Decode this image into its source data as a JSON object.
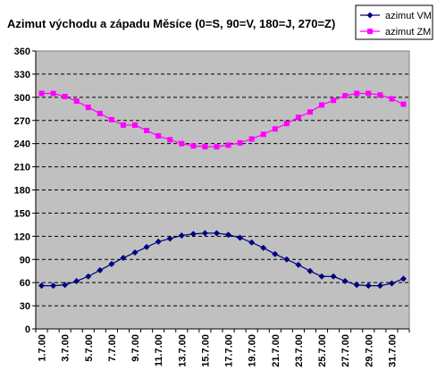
{
  "chart_data": {
    "type": "line",
    "title": "Azimut východu a západu Měsíce (0=S, 90=V, 180=J, 270=Z)",
    "xlabel": "",
    "ylabel": "",
    "ylim": [
      0,
      360
    ],
    "yticks": [
      0,
      30,
      60,
      90,
      120,
      150,
      180,
      210,
      240,
      270,
      300,
      330,
      360
    ],
    "grid": "horizontal dashed",
    "legend": "top-right",
    "plot_background": "#c0c0c0",
    "categories": [
      "1.7.00",
      "2.7.00",
      "3.7.00",
      "4.7.00",
      "5.7.00",
      "6.7.00",
      "7.7.00",
      "8.7.00",
      "9.7.00",
      "10.7.00",
      "11.7.00",
      "12.7.00",
      "13.7.00",
      "14.7.00",
      "15.7.00",
      "16.7.00",
      "17.7.00",
      "18.7.00",
      "19.7.00",
      "20.7.00",
      "21.7.00",
      "22.7.00",
      "23.7.00",
      "24.7.00",
      "25.7.00",
      "26.7.00",
      "27.7.00",
      "28.7.00",
      "29.7.00",
      "30.7.00",
      "31.7.00",
      "1.8.00"
    ],
    "tick_labels": [
      "1.7.00",
      "3.7.00",
      "5.7.00",
      "7.7.00",
      "9.7.00",
      "11.7.00",
      "13.7.00",
      "15.7.00",
      "17.7.00",
      "19.7.00",
      "21.7.00",
      "23.7.00",
      "25.7.00",
      "27.7.00",
      "29.7.00",
      "31.7.00"
    ],
    "series": [
      {
        "name": "azimut VM",
        "color": "#000080",
        "marker": "diamond",
        "values": [
          56,
          56,
          57,
          62,
          68,
          76,
          84,
          92,
          99,
          106,
          113,
          117,
          121,
          123,
          124,
          124,
          122,
          118,
          112,
          105,
          97,
          90,
          83,
          75,
          68,
          68,
          62,
          57,
          56,
          56,
          59,
          65
        ]
      },
      {
        "name": "azimut ZM",
        "color": "#ff00ff",
        "marker": "square",
        "values": [
          305,
          305,
          301,
          295,
          287,
          279,
          271,
          264,
          264,
          257,
          250,
          245,
          240,
          237,
          236,
          236,
          238,
          241,
          246,
          252,
          259,
          266,
          274,
          281,
          290,
          296,
          302,
          305,
          305,
          303,
          298,
          291
        ]
      }
    ]
  }
}
